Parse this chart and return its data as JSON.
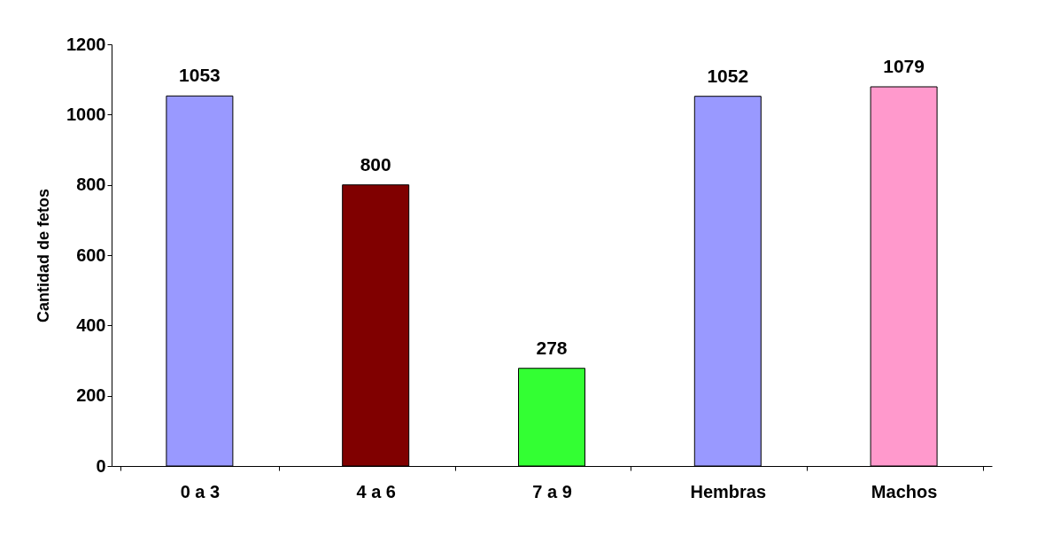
{
  "chart_data": {
    "type": "bar",
    "ylabel": "Cantidad de  fetos",
    "categories": [
      "0 a 3",
      "4 a 6",
      "7 a 9",
      "Hembras",
      "Machos"
    ],
    "values": [
      1053,
      800,
      278,
      1052,
      1079
    ],
    "colors": [
      "#9999ff",
      "#800000",
      "#33ff33",
      "#9999ff",
      "#ff99cc"
    ],
    "ylim": [
      0,
      1200
    ],
    "yticks": [
      0,
      200,
      400,
      600,
      800,
      1000,
      1200
    ],
    "grid": false,
    "data_labels": true
  }
}
